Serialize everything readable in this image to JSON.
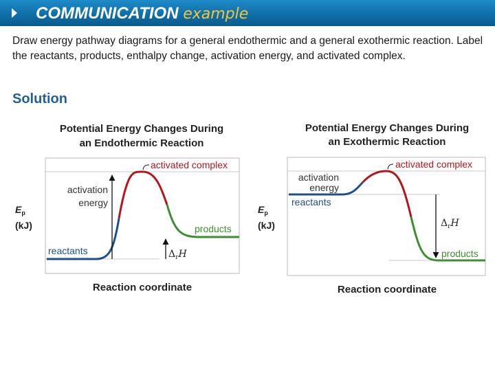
{
  "header": {
    "title_bold": "COMMUNICATION",
    "title_light": "example"
  },
  "question": "Draw energy pathway diagrams for a general endothermic and a general exothermic reaction. Label the reactants, products, enthalpy change, activation energy, and activated complex.",
  "solution_label": "Solution",
  "colors": {
    "banner": "#0f6fa8",
    "reactants_segment": "#1d4f8c",
    "activation_segment": "#b3171c",
    "products_segment": "#3c8f2f"
  },
  "diagrams": [
    {
      "title_line1": "Potential Energy Changes During",
      "title_line2": "an Endothermic Reaction",
      "y_label_symbol": "E",
      "y_label_sub": "p",
      "y_label_unit": "(kJ)",
      "x_label": "Reaction coordinate",
      "activated_complex": "activated complex",
      "activation_line1": "activation",
      "activation_line2": "energy",
      "reactants": "reactants",
      "products": "products",
      "enthalpy_delta": "Δ",
      "enthalpy_sub": "r",
      "enthalpy_symbol": "H"
    },
    {
      "title_line1": "Potential Energy Changes During",
      "title_line2": "an Exothermic Reaction",
      "y_label_symbol": "E",
      "y_label_sub": "p",
      "y_label_unit": "(kJ)",
      "x_label": "Reaction coordinate",
      "activated_complex": "activated complex",
      "activation_line1": "activation",
      "activation_line2": "energy",
      "reactants": "reactants",
      "products": "products",
      "enthalpy_delta": "Δ",
      "enthalpy_sub": "r",
      "enthalpy_symbol": "H"
    }
  ]
}
